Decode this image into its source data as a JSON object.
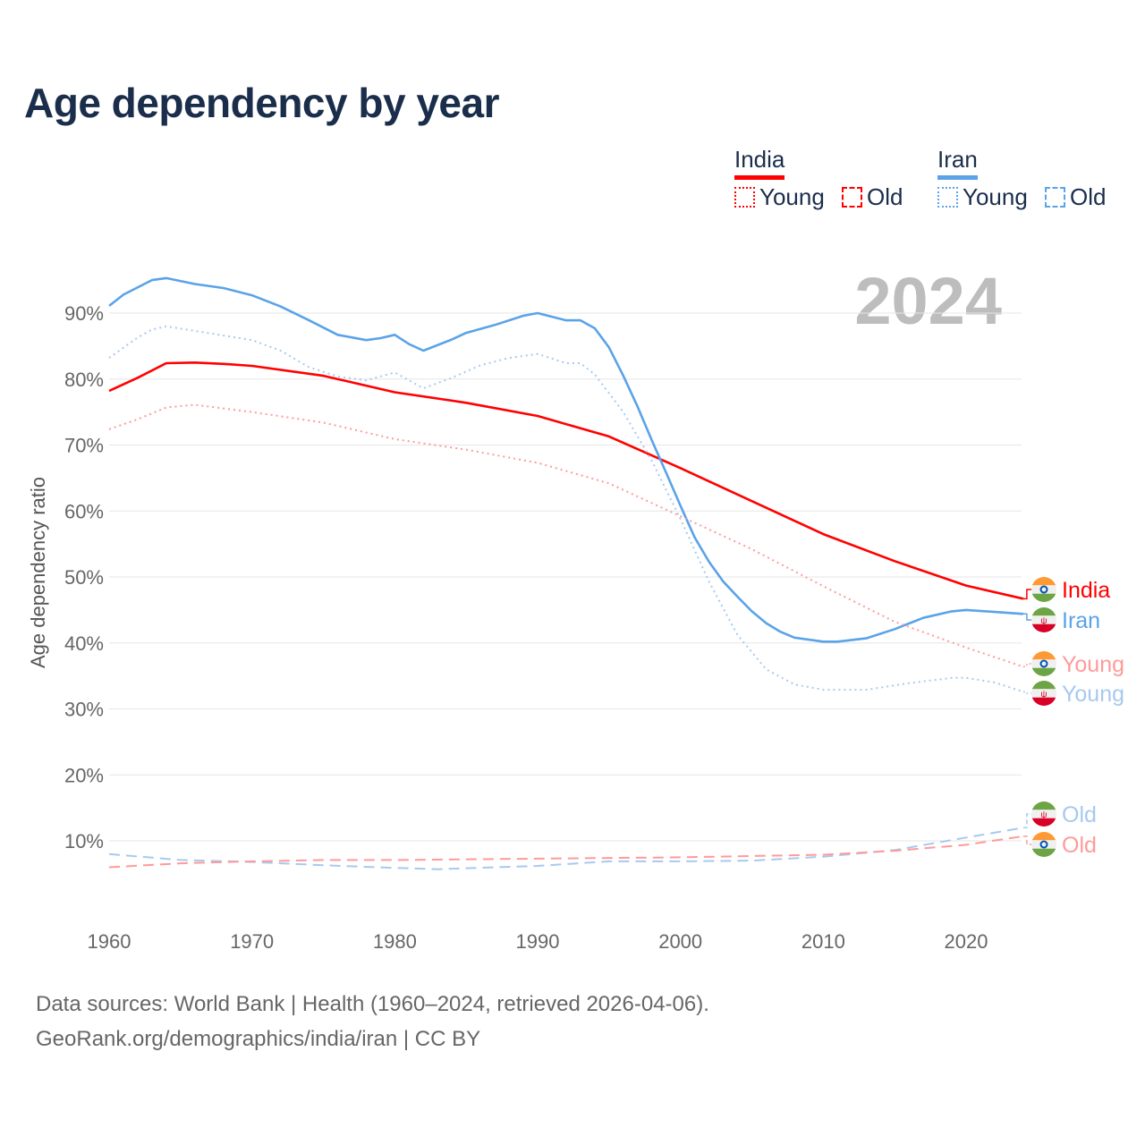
{
  "title": "Age dependency by year",
  "legend": {
    "countries": [
      {
        "name": "India",
        "color": "#ff0000"
      },
      {
        "name": "Iran",
        "color": "#5aa3e8"
      }
    ],
    "young_label": "Young",
    "old_label": "Old"
  },
  "year_overlay": "2024",
  "footer": {
    "line1": "Data sources: World Bank | Health (1960–2024, retrieved 2026-04-06).",
    "line2": "GeoRank.org/demographics/india/iran | CC BY"
  },
  "chart_data": {
    "type": "line",
    "title": "Age dependency by year",
    "xlabel": "",
    "ylabel": "Age dependency ratio",
    "xlim": [
      1960,
      2024
    ],
    "ylim": [
      0,
      100
    ],
    "x_ticks": [
      1960,
      1970,
      1980,
      1990,
      2000,
      2010,
      2020
    ],
    "y_ticks": [
      "10%",
      "20%",
      "30%",
      "40%",
      "50%",
      "60%",
      "70%",
      "80%",
      "90%"
    ],
    "grid": true,
    "series": [
      {
        "name": "India",
        "end_label": "India",
        "country": "India",
        "style": "solid",
        "color": "#ff0000",
        "points": [
          [
            1960,
            78.2
          ],
          [
            1962,
            80.2
          ],
          [
            1964,
            82.4
          ],
          [
            1966,
            82.5
          ],
          [
            1968,
            82.3
          ],
          [
            1970,
            82
          ],
          [
            1975,
            80.5
          ],
          [
            1980,
            78
          ],
          [
            1985,
            76.4
          ],
          [
            1990,
            74.4
          ],
          [
            1995,
            71.3
          ],
          [
            2000,
            66.5
          ],
          [
            2005,
            61.5
          ],
          [
            2010,
            56.5
          ],
          [
            2015,
            52.4
          ],
          [
            2020,
            48.7
          ],
          [
            2024,
            46.7
          ]
        ]
      },
      {
        "name": "Iran",
        "end_label": "Iran",
        "country": "Iran",
        "style": "solid",
        "color": "#5aa3e8",
        "points": [
          [
            1960,
            91.1
          ],
          [
            1961,
            92.8
          ],
          [
            1963,
            95
          ],
          [
            1964,
            95.3
          ],
          [
            1966,
            94.4
          ],
          [
            1968,
            93.8
          ],
          [
            1970,
            92.7
          ],
          [
            1972,
            91
          ],
          [
            1974,
            88.9
          ],
          [
            1976,
            86.7
          ],
          [
            1978,
            85.9
          ],
          [
            1979,
            86.2
          ],
          [
            1980,
            86.7
          ],
          [
            1981,
            85.3
          ],
          [
            1982,
            84.3
          ],
          [
            1984,
            86
          ],
          [
            1985,
            87
          ],
          [
            1987,
            88.2
          ],
          [
            1989,
            89.6
          ],
          [
            1990,
            90
          ],
          [
            1992,
            88.9
          ],
          [
            1993,
            88.9
          ],
          [
            1994,
            87.7
          ],
          [
            1995,
            84.8
          ],
          [
            1996,
            80.5
          ],
          [
            1997,
            75.8
          ],
          [
            1998,
            70.7
          ],
          [
            1999,
            65.8
          ],
          [
            2000,
            60.8
          ],
          [
            2001,
            56
          ],
          [
            2002,
            52.3
          ],
          [
            2003,
            49.3
          ],
          [
            2004,
            47
          ],
          [
            2005,
            44.8
          ],
          [
            2006,
            43
          ],
          [
            2007,
            41.7
          ],
          [
            2008,
            40.8
          ],
          [
            2010,
            40.2
          ],
          [
            2011,
            40.2
          ],
          [
            2013,
            40.7
          ],
          [
            2015,
            42.1
          ],
          [
            2017,
            43.8
          ],
          [
            2019,
            44.8
          ],
          [
            2020,
            45
          ],
          [
            2022,
            44.7
          ],
          [
            2024,
            44.4
          ]
        ]
      },
      {
        "name": "India Young",
        "end_label": "Young",
        "country": "India",
        "style": "dotted",
        "color": "#ff9a9a",
        "points": [
          [
            1960,
            72.4
          ],
          [
            1962,
            73.9
          ],
          [
            1964,
            75.7
          ],
          [
            1966,
            76.1
          ],
          [
            1970,
            75
          ],
          [
            1975,
            73.4
          ],
          [
            1980,
            70.9
          ],
          [
            1985,
            69.3
          ],
          [
            1990,
            67.3
          ],
          [
            1995,
            64.2
          ],
          [
            2000,
            59.2
          ],
          [
            2005,
            54.2
          ],
          [
            2010,
            48.6
          ],
          [
            2015,
            43.2
          ],
          [
            2020,
            39.3
          ],
          [
            2024,
            36.4
          ]
        ]
      },
      {
        "name": "Iran Young",
        "end_label": "Young",
        "country": "Iran",
        "style": "dotted",
        "color": "#a7c9ef",
        "points": [
          [
            1960,
            83.2
          ],
          [
            1962,
            86.3
          ],
          [
            1963,
            87.5
          ],
          [
            1964,
            88
          ],
          [
            1966,
            87.3
          ],
          [
            1970,
            85.9
          ],
          [
            1972,
            84.3
          ],
          [
            1974,
            81.8
          ],
          [
            1976,
            80.4
          ],
          [
            1978,
            79.8
          ],
          [
            1980,
            81
          ],
          [
            1982,
            78.6
          ],
          [
            1984,
            80.2
          ],
          [
            1986,
            82.1
          ],
          [
            1988,
            83.2
          ],
          [
            1990,
            83.8
          ],
          [
            1992,
            82.4
          ],
          [
            1993,
            82.4
          ],
          [
            1994,
            80.7
          ],
          [
            1996,
            75
          ],
          [
            1998,
            67.6
          ],
          [
            2000,
            58.8
          ],
          [
            2002,
            49.3
          ],
          [
            2004,
            41.2
          ],
          [
            2006,
            36
          ],
          [
            2008,
            33.7
          ],
          [
            2010,
            32.9
          ],
          [
            2013,
            32.9
          ],
          [
            2016,
            33.9
          ],
          [
            2019,
            34.7
          ],
          [
            2020,
            34.7
          ],
          [
            2022,
            34
          ],
          [
            2024,
            32.6
          ]
        ]
      },
      {
        "name": "Iran Old",
        "end_label": "Old",
        "country": "Iran",
        "style": "dashed",
        "color": "#a7c9ef",
        "points": [
          [
            1960,
            8
          ],
          [
            1965,
            7.1
          ],
          [
            1970,
            6.8
          ],
          [
            1975,
            6.3
          ],
          [
            1980,
            5.9
          ],
          [
            1983,
            5.7
          ],
          [
            1990,
            6.2
          ],
          [
            1995,
            6.9
          ],
          [
            2000,
            6.9
          ],
          [
            2005,
            7
          ],
          [
            2010,
            7.6
          ],
          [
            2015,
            8.6
          ],
          [
            2020,
            10.5
          ],
          [
            2024,
            12
          ]
        ]
      },
      {
        "name": "India Old",
        "end_label": "Old",
        "country": "India",
        "style": "dashed",
        "color": "#ff9a9a",
        "points": [
          [
            1960,
            6
          ],
          [
            1965,
            6.6
          ],
          [
            1970,
            6.9
          ],
          [
            1975,
            7.1
          ],
          [
            1980,
            7.1
          ],
          [
            1990,
            7.3
          ],
          [
            2000,
            7.5
          ],
          [
            2010,
            7.9
          ],
          [
            2015,
            8.5
          ],
          [
            2020,
            9.4
          ],
          [
            2024,
            10.7
          ]
        ]
      }
    ]
  }
}
